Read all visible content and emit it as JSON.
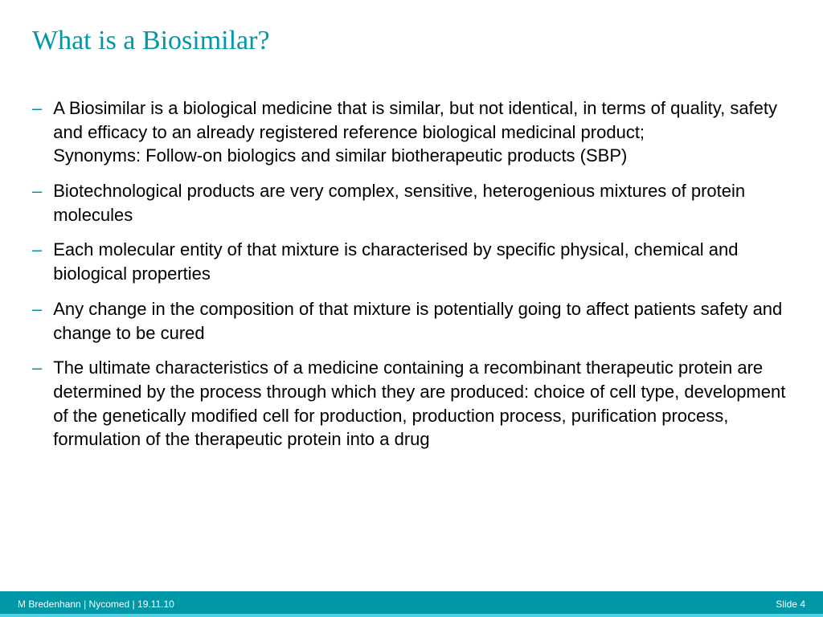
{
  "slide": {
    "title": "What is a Biosimilar?",
    "bullets": [
      "A Biosimilar is a biological medicine that is similar, but not identical, in terms of quality, safety and efficacy to an already registered reference biological medicinal product;\nSynonyms: Follow-on biologics and similar biotherapeutic products (SBP)",
      "Biotechnological products are very complex, sensitive, heterogenious mixtures of protein molecules",
      "Each molecular entity of that mixture is characterised by specific physical, chemical and biological properties",
      "Any change in the composition of that mixture is potentially going to affect patients safety and change to be cured",
      "The ultimate characteristics of a medicine containing a recombinant therapeutic protein are determined by the process through which they are produced: choice of cell type, development of the genetically modified cell for production, production process, purification process, formulation of the therapeutic protein into a drug"
    ]
  },
  "footer": {
    "author": "M Bredenhann",
    "company": "Nycomed",
    "date": "19.11.10",
    "separator": "  |  ",
    "slide_label": "Slide",
    "slide_number": "4"
  },
  "colors": {
    "title_color": "#0097a7",
    "bullet_dash_color": "#0097a7",
    "body_text_color": "#000000",
    "footer_background": "#0097a7",
    "footer_accent": "#4dd0e1",
    "footer_text": "#ffffff",
    "background": "#ffffff"
  },
  "typography": {
    "title_fontsize": 34,
    "title_family": "Georgia, serif",
    "body_fontsize": 22,
    "body_family": "Arial, sans-serif",
    "footer_fontsize": 12
  }
}
